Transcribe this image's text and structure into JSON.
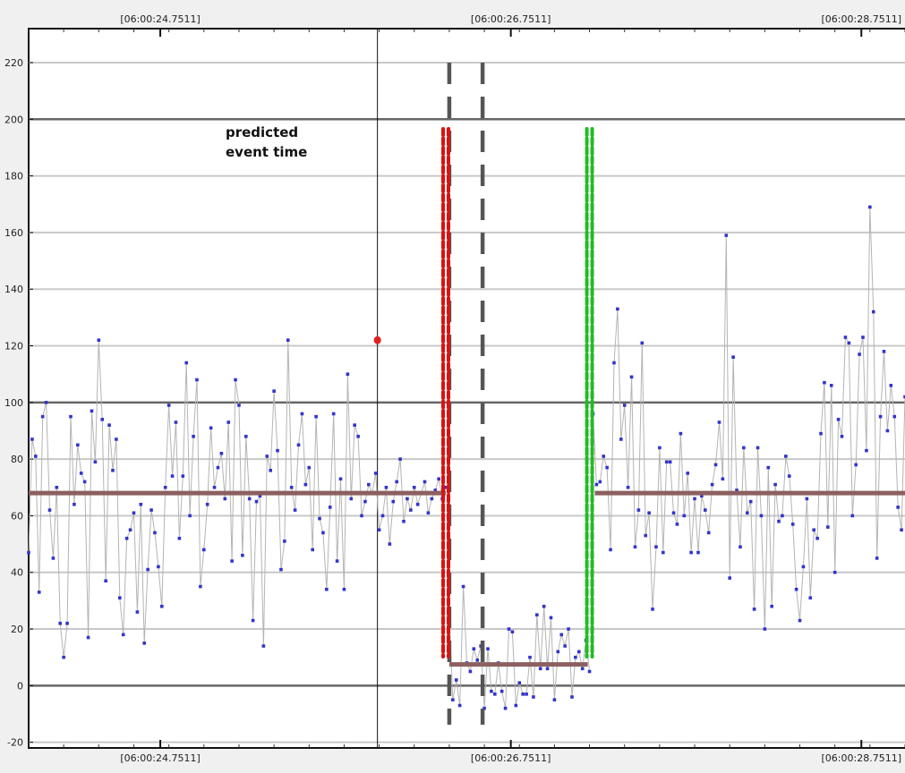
{
  "chart_data": {
    "type": "line",
    "title": "",
    "xlabel": "",
    "ylabel": "",
    "ylim": [
      -22,
      232
    ],
    "y_ticks": [
      -20,
      0,
      20,
      40,
      60,
      80,
      100,
      120,
      140,
      160,
      180,
      200,
      220
    ],
    "time_ticks": [
      {
        "label": "[06:00:24.7511]",
        "t": 24.7511
      },
      {
        "label": "[06:00:26.7511]",
        "t": 26.7511
      },
      {
        "label": "[06:00:28.7511]",
        "t": 28.7511
      }
    ],
    "xlim": [
      24.0,
      29.0
    ],
    "grid": true,
    "major_reference_lines": [
      0,
      100,
      200
    ],
    "predicted_event_time": 25.99,
    "predicted_event_value": 122,
    "annotation": [
      "predicted",
      "event time"
    ],
    "dashed_boundaries": [
      {
        "t": 26.4,
        "style": "gray-dash"
      },
      {
        "t": 26.59,
        "style": "gray-dash"
      }
    ],
    "red_boundary_t": 26.38,
    "green_boundary_t": 27.2,
    "mean_levels": [
      {
        "from": 24.0,
        "to": 26.38,
        "value": 68
      },
      {
        "from": 26.4,
        "to": 27.19,
        "value": 7.5
      },
      {
        "from": 27.23,
        "to": 29.0,
        "value": 68
      }
    ],
    "colors": {
      "series_line": "#b4b4b4",
      "series_marker": "#3333cc",
      "mean_line": "#8c6060",
      "red_dash": "#dd1111",
      "green_dash": "#22bb22",
      "gray_dash": "#555555",
      "event_marker": "#dd2222"
    },
    "series": [
      {
        "x": [
          24.0,
          24.02,
          24.04,
          24.06,
          24.08,
          24.1,
          24.12,
          24.14,
          24.16,
          24.18,
          24.2,
          24.22,
          24.24,
          24.26,
          24.28,
          24.3,
          24.32,
          24.34,
          24.36,
          24.38,
          24.4,
          24.42,
          24.44,
          24.46,
          24.48,
          24.5,
          24.52,
          24.54,
          24.56,
          24.58,
          24.6,
          24.62,
          24.64,
          24.66,
          24.68,
          24.7,
          24.72,
          24.74,
          24.76,
          24.78,
          24.8,
          24.82,
          24.84,
          24.86,
          24.88,
          24.9,
          24.92,
          24.94,
          24.96,
          24.98,
          25.0,
          25.02,
          25.04,
          25.06,
          25.08,
          25.1,
          25.12,
          25.14,
          25.16,
          25.18,
          25.2,
          25.22,
          25.24,
          25.26,
          25.28,
          25.3,
          25.32,
          25.34,
          25.36,
          25.38,
          25.4,
          25.42,
          25.44,
          25.46,
          25.48,
          25.5,
          25.52,
          25.54,
          25.56,
          25.58,
          25.6,
          25.62,
          25.64,
          25.66,
          25.68,
          25.7,
          25.72,
          25.74,
          25.76,
          25.78,
          25.8,
          25.82,
          25.84,
          25.86,
          25.88,
          25.9,
          25.92,
          25.94,
          25.96,
          25.98,
          26.0,
          26.02,
          26.04,
          26.06,
          26.08,
          26.1,
          26.12,
          26.14,
          26.16,
          26.18,
          26.2,
          26.22,
          26.24,
          26.26,
          26.28,
          26.3,
          26.32,
          26.34,
          26.36,
          26.38
        ],
        "y": [
          47,
          87,
          81,
          33,
          95,
          100,
          62,
          45,
          70,
          22,
          10,
          22,
          95,
          64,
          85,
          75,
          72,
          17,
          97,
          79,
          122,
          94,
          37,
          92,
          76,
          87,
          31,
          18,
          52,
          55,
          61,
          26,
          64,
          15,
          41,
          62,
          54,
          42,
          28,
          70,
          99,
          74,
          93,
          52,
          74,
          114,
          60,
          88,
          108,
          35,
          48,
          64,
          91,
          70,
          77,
          82,
          66,
          93,
          44,
          108,
          99,
          46,
          88,
          66,
          23,
          65,
          67,
          14,
          81,
          76,
          104,
          83,
          41,
          51,
          122,
          70,
          62,
          85,
          96,
          71,
          77,
          48,
          95,
          59,
          54,
          34,
          63,
          96,
          44,
          73,
          34,
          110,
          66,
          92,
          88,
          60,
          65,
          71,
          68,
          75,
          55,
          60,
          70,
          50,
          65,
          72,
          80,
          58,
          66,
          62,
          70,
          64,
          68,
          72,
          61,
          66,
          69,
          73,
          66,
          70
        ]
      },
      {
        "x": [
          26.4,
          26.42,
          26.44,
          26.46,
          26.48,
          26.5,
          26.52,
          26.54,
          26.56,
          26.58,
          26.6,
          26.62,
          26.64,
          26.66,
          26.68,
          26.7,
          26.72,
          26.74,
          26.76,
          26.78,
          26.8,
          26.82,
          26.84,
          26.86,
          26.88,
          26.9,
          26.92,
          26.94,
          26.96,
          26.98,
          27.0,
          27.02,
          27.04,
          27.06,
          27.08,
          27.1,
          27.12,
          27.14,
          27.16,
          27.18,
          27.2
        ],
        "y": [
          26,
          -5,
          2,
          -7,
          35,
          8,
          5,
          13,
          9,
          14,
          -8,
          13,
          -2,
          -3,
          8,
          -2,
          -8,
          20,
          19,
          -7,
          1,
          -3,
          -3,
          10,
          -4,
          25,
          6,
          28,
          6,
          24,
          -5,
          12,
          18,
          14,
          20,
          -4,
          10,
          12,
          6,
          16,
          5
        ]
      },
      {
        "x": [
          27.22,
          27.24,
          27.26,
          27.28,
          27.3,
          27.32,
          27.34,
          27.36,
          27.38,
          27.4,
          27.42,
          27.44,
          27.46,
          27.48,
          27.5,
          27.52,
          27.54,
          27.56,
          27.58,
          27.6,
          27.62,
          27.64,
          27.66,
          27.68,
          27.7,
          27.72,
          27.74,
          27.76,
          27.78,
          27.8,
          27.82,
          27.84,
          27.86,
          27.88,
          27.9,
          27.92,
          27.94,
          27.96,
          27.98,
          28.0,
          28.02,
          28.04,
          28.06,
          28.08,
          28.1,
          28.12,
          28.14,
          28.16,
          28.18,
          28.2,
          28.22,
          28.24,
          28.26,
          28.28,
          28.3,
          28.32,
          28.34,
          28.36,
          28.38,
          28.4,
          28.42,
          28.44,
          28.46,
          28.48,
          28.5,
          28.52,
          28.54,
          28.56,
          28.58,
          28.6,
          28.62,
          28.64,
          28.66,
          28.68,
          28.7,
          28.72,
          28.74,
          28.76,
          28.78,
          28.8,
          28.82,
          28.84,
          28.86,
          28.88,
          28.9,
          28.92,
          28.94,
          28.96,
          28.98,
          29.0
        ],
        "y": [
          96,
          71,
          72,
          81,
          77,
          48,
          114,
          133,
          87,
          99,
          70,
          109,
          49,
          62,
          121,
          53,
          61,
          27,
          49,
          84,
          47,
          79,
          79,
          61,
          57,
          89,
          60,
          75,
          47,
          66,
          47,
          67,
          62,
          54,
          71,
          78,
          93,
          73,
          159,
          38,
          116,
          69,
          49,
          84,
          61,
          65,
          27,
          84,
          60,
          20,
          77,
          28,
          71,
          58,
          60,
          81,
          74,
          57,
          34,
          23,
          42,
          66,
          31,
          55,
          52,
          89,
          107,
          56,
          106,
          40,
          94,
          88,
          123,
          121,
          60,
          78,
          117,
          123,
          83,
          169,
          132,
          45,
          95,
          118,
          90,
          106,
          95,
          63,
          55,
          102
        ]
      }
    ]
  }
}
